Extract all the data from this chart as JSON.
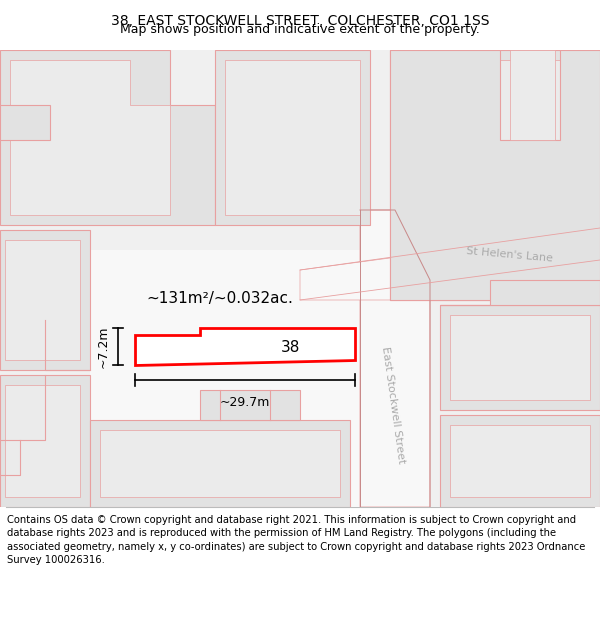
{
  "title": "38, EAST STOCKWELL STREET, COLCHESTER, CO1 1SS",
  "subtitle": "Map shows position and indicative extent of the property.",
  "footer": "Contains OS data © Crown copyright and database right 2021. This information is subject to Crown copyright and database rights 2023 and is reproduced with the permission of HM Land Registry. The polygons (including the associated geometry, namely x, y co-ordinates) are subject to Crown copyright and database rights 2023 Ordnance Survey 100026316.",
  "area_label": "~131m²/~0.032ac.",
  "width_label": "~29.7m",
  "height_label": "~7.2m",
  "property_number": "38",
  "street_label_east": "East Stockwell Street",
  "street_label_helen": "St Helen's Lane",
  "title_fontsize": 10,
  "subtitle_fontsize": 9,
  "footer_fontsize": 7.2,
  "map_bg": "#f2f2f2",
  "building_fill": "#e2e2e2",
  "building_fill2": "#ebebeb",
  "road_fill": "#ffffff",
  "outline_color": "#e8a0a0",
  "outline_dark": "#c88888",
  "highlight_fill": "#ffffff",
  "highlight_edge": "#ff0000",
  "text_color": "#000000",
  "street_text_color": "#aaaaaa"
}
